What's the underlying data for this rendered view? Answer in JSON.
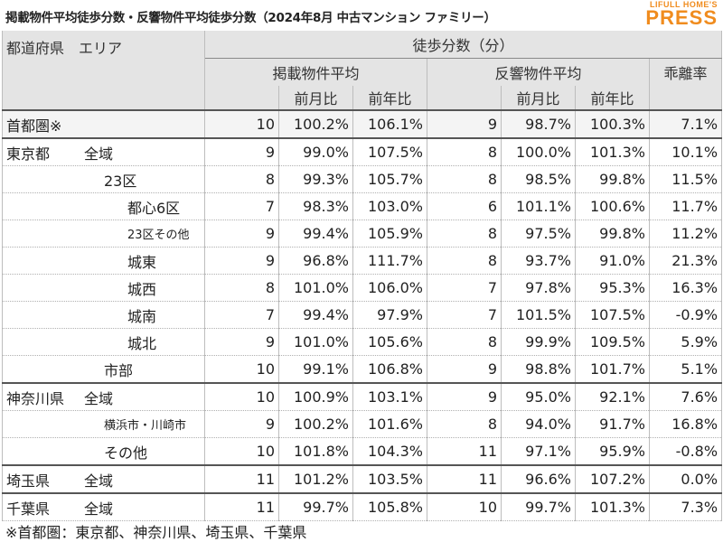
{
  "title": "掲載物件平均徒歩分数・反響物件平均徒歩分数（2024年8月 中古マンション ファミリー）",
  "logo": {
    "line1": "LIFULL HOME'S",
    "line2": "PRESS"
  },
  "header": {
    "region": "都道府県　エリア",
    "walk": "徒歩分数（分）",
    "listed_avg": "掲載物件平均",
    "response_avg": "反響物件平均",
    "divergence": "乖離率",
    "mom": "前月比",
    "yoy": "前年比"
  },
  "rows": [
    {
      "pref": "首都圏※",
      "area": "",
      "l": "10",
      "lm": "100.2%",
      "ly": "106.1%",
      "r": "9",
      "rm": "98.7%",
      "ry": "100.3%",
      "d": "7.1%"
    },
    {
      "pref": "東京都",
      "area": "全域",
      "l": "9",
      "lm": "99.0%",
      "ly": "107.5%",
      "r": "8",
      "rm": "100.0%",
      "ry": "101.3%",
      "d": "10.1%"
    },
    {
      "pref": "",
      "area": "23区",
      "l": "8",
      "lm": "99.3%",
      "ly": "105.7%",
      "r": "8",
      "rm": "98.5%",
      "ry": "99.8%",
      "d": "11.5%"
    },
    {
      "pref": "",
      "area": "都心6区",
      "l": "7",
      "lm": "98.3%",
      "ly": "103.0%",
      "r": "6",
      "rm": "101.1%",
      "ry": "100.6%",
      "d": "11.7%"
    },
    {
      "pref": "",
      "area": "23区その他",
      "l": "9",
      "lm": "99.4%",
      "ly": "105.9%",
      "r": "8",
      "rm": "97.5%",
      "ry": "99.8%",
      "d": "11.2%"
    },
    {
      "pref": "",
      "area": "城東",
      "l": "9",
      "lm": "96.8%",
      "ly": "111.7%",
      "r": "8",
      "rm": "93.7%",
      "ry": "91.0%",
      "d": "21.3%"
    },
    {
      "pref": "",
      "area": "城西",
      "l": "8",
      "lm": "101.0%",
      "ly": "106.0%",
      "r": "7",
      "rm": "97.8%",
      "ry": "95.3%",
      "d": "16.3%"
    },
    {
      "pref": "",
      "area": "城南",
      "l": "7",
      "lm": "99.4%",
      "ly": "97.9%",
      "r": "7",
      "rm": "101.5%",
      "ry": "107.5%",
      "d": "-0.9%"
    },
    {
      "pref": "",
      "area": "城北",
      "l": "9",
      "lm": "101.0%",
      "ly": "105.6%",
      "r": "8",
      "rm": "99.9%",
      "ry": "109.5%",
      "d": "5.9%"
    },
    {
      "pref": "",
      "area": "市部",
      "l": "10",
      "lm": "99.1%",
      "ly": "106.8%",
      "r": "9",
      "rm": "98.8%",
      "ry": "101.7%",
      "d": "5.1%"
    },
    {
      "pref": "神奈川県",
      "area": "全域",
      "l": "10",
      "lm": "100.9%",
      "ly": "103.1%",
      "r": "9",
      "rm": "95.0%",
      "ry": "92.1%",
      "d": "7.6%"
    },
    {
      "pref": "",
      "area": "横浜市・川崎市",
      "l": "9",
      "lm": "100.2%",
      "ly": "101.6%",
      "r": "8",
      "rm": "94.0%",
      "ry": "91.7%",
      "d": "16.8%"
    },
    {
      "pref": "",
      "area": "その他",
      "l": "10",
      "lm": "101.8%",
      "ly": "104.3%",
      "r": "11",
      "rm": "97.1%",
      "ry": "95.9%",
      "d": "-0.8%"
    },
    {
      "pref": "埼玉県",
      "area": "全域",
      "l": "11",
      "lm": "101.2%",
      "ly": "103.5%",
      "r": "11",
      "rm": "96.6%",
      "ry": "107.2%",
      "d": "0.0%"
    },
    {
      "pref": "千葉県",
      "area": "全域",
      "l": "11",
      "lm": "99.7%",
      "ly": "105.8%",
      "r": "10",
      "rm": "99.7%",
      "ry": "101.3%",
      "d": "7.3%"
    }
  ],
  "footer": "※首都圏：東京都、神奈川県、埼玉県、千葉県"
}
